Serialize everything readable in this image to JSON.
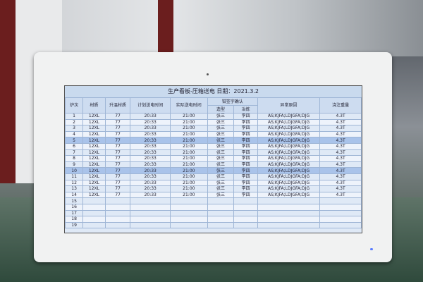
{
  "board": {
    "title": "生产看板-压箱送电    日期：2021.3.2",
    "headers": {
      "heat": "炉次",
      "material": "材质",
      "heating_material": "升温材质",
      "planned_time": "计划送电时间",
      "actual_time": "实际送电时间",
      "sign_group": "钳签字确认",
      "molding": "造型",
      "smelting": "冶炼",
      "abnormal": "异常原因",
      "pour_weight": "浇注重量"
    },
    "rows": [
      {
        "no": "1",
        "mat": "12XL",
        "heat": "77",
        "plan": "20:33",
        "actual": "21:00",
        "mold": "张三",
        "smelt": "李四",
        "reason": "AS;KJFA;LDJGFA;DJG",
        "weight": "4.3T"
      },
      {
        "no": "2",
        "mat": "12XL",
        "heat": "77",
        "plan": "20:33",
        "actual": "21:00",
        "mold": "张三",
        "smelt": "李四",
        "reason": "AS;KJFA;LDJGFA;DJG",
        "weight": "4.3T"
      },
      {
        "no": "3",
        "mat": "12XL",
        "heat": "77",
        "plan": "20:33",
        "actual": "21:00",
        "mold": "张三",
        "smelt": "李四",
        "reason": "AS;KJFA;LDJGFA;DJG",
        "weight": "4.3T"
      },
      {
        "no": "4",
        "mat": "12XL",
        "heat": "77",
        "plan": "20:33",
        "actual": "21:00",
        "mold": "张三",
        "smelt": "李四",
        "reason": "AS;KJFA;LDJGFA;DJG",
        "weight": "4.3T"
      },
      {
        "no": "5",
        "mat": "12XL",
        "heat": "77",
        "plan": "20:33",
        "actual": "21:00",
        "mold": "张三",
        "smelt": "李四",
        "reason": "AS;KJFA;LDJGFA;DJG",
        "weight": "4.3T"
      },
      {
        "no": "6",
        "mat": "12XL",
        "heat": "77",
        "plan": "20:33",
        "actual": "21:00",
        "mold": "张三",
        "smelt": "李四",
        "reason": "AS;KJFA;LDJGFA;DJG",
        "weight": "4.3T"
      },
      {
        "no": "7",
        "mat": "12XL",
        "heat": "77",
        "plan": "20:33",
        "actual": "21:00",
        "mold": "张三",
        "smelt": "李四",
        "reason": "AS;KJFA;LDJGFA;DJG",
        "weight": "4.3T"
      },
      {
        "no": "8",
        "mat": "12XL",
        "heat": "77",
        "plan": "20:33",
        "actual": "21:00",
        "mold": "张三",
        "smelt": "李四",
        "reason": "AS;KJFA;LDJGFA;DJG",
        "weight": "4.3T"
      },
      {
        "no": "9",
        "mat": "12XL",
        "heat": "77",
        "plan": "20:33",
        "actual": "21:00",
        "mold": "张三",
        "smelt": "李四",
        "reason": "AS;KJFA;LDJGFA;DJG",
        "weight": "4.3T"
      },
      {
        "no": "10",
        "mat": "12XL",
        "heat": "77",
        "plan": "20:33",
        "actual": "21:00",
        "mold": "张三",
        "smelt": "李四",
        "reason": "AS;KJFA;LDJGFA;DJG",
        "weight": "4.3T"
      },
      {
        "no": "11",
        "mat": "12XL",
        "heat": "77",
        "plan": "20:33",
        "actual": "21:00",
        "mold": "张三",
        "smelt": "李四",
        "reason": "AS;KJFA;LDJGFA;DJG",
        "weight": "4.3T"
      },
      {
        "no": "12",
        "mat": "12XL",
        "heat": "77",
        "plan": "20:33",
        "actual": "21:00",
        "mold": "张三",
        "smelt": "李四",
        "reason": "AS;KJFA;LDJGFA;DJG",
        "weight": "4.3T"
      },
      {
        "no": "13",
        "mat": "12XL",
        "heat": "77",
        "plan": "20:33",
        "actual": "21:00",
        "mold": "张三",
        "smelt": "李四",
        "reason": "AS;KJFA;LDJGFA;DJG",
        "weight": "4.3T"
      },
      {
        "no": "14",
        "mat": "12XL",
        "heat": "77",
        "plan": "20:33",
        "actual": "21:00",
        "mold": "张三",
        "smelt": "李四",
        "reason": "AS;KJFA;LDJGFA;DJG",
        "weight": "4.3T"
      },
      {
        "no": "15"
      },
      {
        "no": "16"
      },
      {
        "no": "17"
      },
      {
        "no": "18"
      },
      {
        "no": "19"
      }
    ],
    "highlighted_rows": [
      "5",
      "10"
    ],
    "highlight_color": "#a9c3ea"
  }
}
